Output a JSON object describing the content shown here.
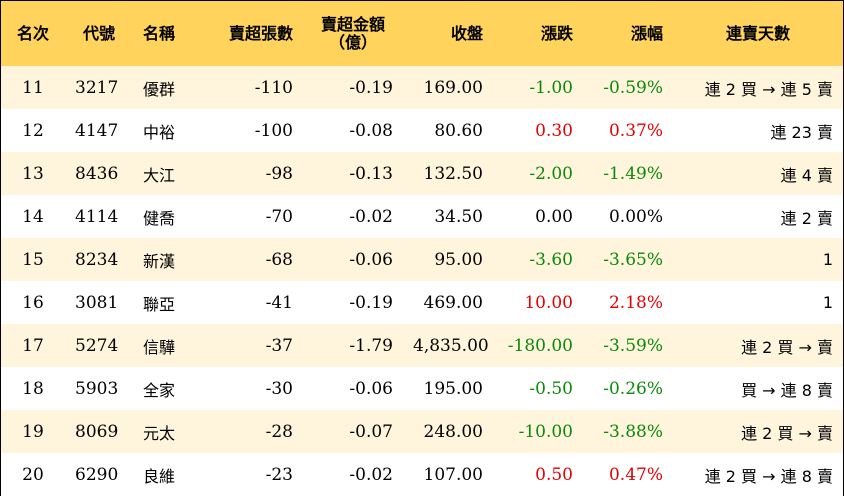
{
  "headers": {
    "rank": "名次",
    "code": "代號",
    "name": "名稱",
    "net_sell_lots": "賣超張數",
    "net_sell_amount_line1": "賣超金額",
    "net_sell_amount_line2": "（億）",
    "close": "收盤",
    "change": "漲跌",
    "pct_change": "漲幅",
    "streak": "連賣天數"
  },
  "colors": {
    "header_bg": "#ffd35c",
    "odd_row_bg": "#fff5dc",
    "up": "#e60000",
    "down": "#0a8a0a"
  },
  "rows": [
    {
      "rank": "11",
      "code": "3217",
      "name": "優群",
      "lots": "-110",
      "amount": "-0.19",
      "close": "169.00",
      "change": "-1.00",
      "pct": "-0.59%",
      "dir": "down",
      "streak": "連 2 買 → 連 5 賣"
    },
    {
      "rank": "12",
      "code": "4147",
      "name": "中裕",
      "lots": "-100",
      "amount": "-0.08",
      "close": "80.60",
      "change": "0.30",
      "pct": "0.37%",
      "dir": "up",
      "streak": "連 23 賣"
    },
    {
      "rank": "13",
      "code": "8436",
      "name": "大江",
      "lots": "-98",
      "amount": "-0.13",
      "close": "132.50",
      "change": "-2.00",
      "pct": "-1.49%",
      "dir": "down",
      "streak": "連 4 賣"
    },
    {
      "rank": "14",
      "code": "4114",
      "name": "健喬",
      "lots": "-70",
      "amount": "-0.02",
      "close": "34.50",
      "change": "0.00",
      "pct": "0.00%",
      "dir": "flat",
      "streak": "連 2 賣"
    },
    {
      "rank": "15",
      "code": "8234",
      "name": "新漢",
      "lots": "-68",
      "amount": "-0.06",
      "close": "95.00",
      "change": "-3.60",
      "pct": "-3.65%",
      "dir": "down",
      "streak": "1"
    },
    {
      "rank": "16",
      "code": "3081",
      "name": "聯亞",
      "lots": "-41",
      "amount": "-0.19",
      "close": "469.00",
      "change": "10.00",
      "pct": "2.18%",
      "dir": "up",
      "streak": "1"
    },
    {
      "rank": "17",
      "code": "5274",
      "name": "信驊",
      "lots": "-37",
      "amount": "-1.79",
      "close": "4,835.00",
      "change": "-180.00",
      "pct": "-3.59%",
      "dir": "down",
      "streak": "連 2 買 → 賣"
    },
    {
      "rank": "18",
      "code": "5903",
      "name": "全家",
      "lots": "-30",
      "amount": "-0.06",
      "close": "195.00",
      "change": "-0.50",
      "pct": "-0.26%",
      "dir": "down",
      "streak": "買 → 連 8 賣"
    },
    {
      "rank": "19",
      "code": "8069",
      "name": "元太",
      "lots": "-28",
      "amount": "-0.07",
      "close": "248.00",
      "change": "-10.00",
      "pct": "-3.88%",
      "dir": "down",
      "streak": "連 2 買 → 賣"
    },
    {
      "rank": "20",
      "code": "6290",
      "name": "良維",
      "lots": "-23",
      "amount": "-0.02",
      "close": "107.00",
      "change": "0.50",
      "pct": "0.47%",
      "dir": "up",
      "streak": "連 2 買 → 連 8 賣"
    }
  ]
}
